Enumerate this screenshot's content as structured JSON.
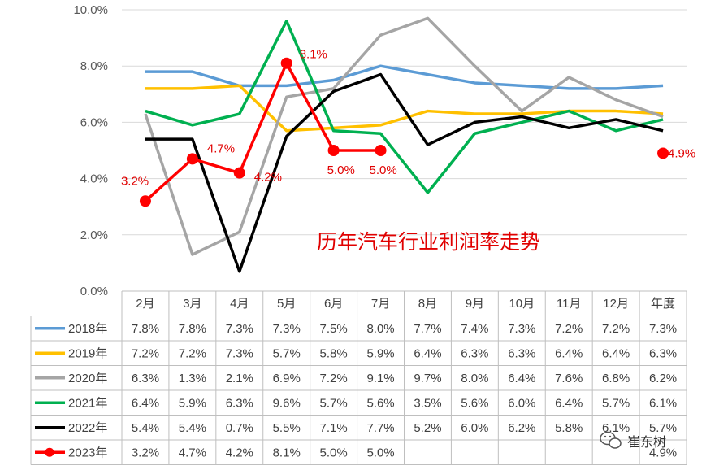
{
  "chart_data": {
    "type": "line",
    "title": "历年汽车行业利润率走势",
    "categories": [
      "2月",
      "3月",
      "4月",
      "5月",
      "6月",
      "7月",
      "8月",
      "9月",
      "10月",
      "11月",
      "12月",
      "年度"
    ],
    "y_ticks": [
      "0.0%",
      "2.0%",
      "4.0%",
      "6.0%",
      "8.0%",
      "10.0%"
    ],
    "ylim": [
      0,
      10
    ],
    "grid": true,
    "legend": "data-table",
    "series": [
      {
        "name": "2018年",
        "color": "#5b9bd5",
        "values": [
          7.8,
          7.8,
          7.3,
          7.3,
          7.5,
          8.0,
          7.7,
          7.4,
          7.3,
          7.2,
          7.2,
          7.3
        ],
        "labels": [
          "7.8%",
          "7.8%",
          "7.3%",
          "7.3%",
          "7.5%",
          "8.0%",
          "7.7%",
          "7.4%",
          "7.3%",
          "7.2%",
          "7.2%",
          "7.3%"
        ]
      },
      {
        "name": "2019年",
        "color": "#ffc000",
        "values": [
          7.2,
          7.2,
          7.3,
          5.7,
          5.8,
          5.9,
          6.4,
          6.3,
          6.3,
          6.4,
          6.4,
          6.3
        ],
        "labels": [
          "7.2%",
          "7.2%",
          "7.3%",
          "5.7%",
          "5.8%",
          "5.9%",
          "6.4%",
          "6.3%",
          "6.3%",
          "6.4%",
          "6.4%",
          "6.3%"
        ]
      },
      {
        "name": "2020年",
        "color": "#a5a5a5",
        "values": [
          6.3,
          1.3,
          2.1,
          6.9,
          7.2,
          9.1,
          9.7,
          8.0,
          6.4,
          7.6,
          6.8,
          6.2
        ],
        "labels": [
          "6.3%",
          "1.3%",
          "2.1%",
          "6.9%",
          "7.2%",
          "9.1%",
          "9.7%",
          "8.0%",
          "6.4%",
          "7.6%",
          "6.8%",
          "6.2%"
        ]
      },
      {
        "name": "2021年",
        "color": "#00b050",
        "values": [
          6.4,
          5.9,
          6.3,
          9.6,
          5.7,
          5.6,
          3.5,
          5.6,
          6.0,
          6.4,
          5.7,
          6.1
        ],
        "labels": [
          "6.4%",
          "5.9%",
          "6.3%",
          "9.6%",
          "5.7%",
          "5.6%",
          "3.5%",
          "5.6%",
          "6.0%",
          "6.4%",
          "5.7%",
          "6.1%"
        ]
      },
      {
        "name": "2022年",
        "color": "#000000",
        "values": [
          5.4,
          5.4,
          0.7,
          5.5,
          7.1,
          7.7,
          5.2,
          6.0,
          6.2,
          5.8,
          6.1,
          5.7
        ],
        "labels": [
          "5.4%",
          "5.4%",
          "0.7%",
          "5.5%",
          "7.1%",
          "7.7%",
          "5.2%",
          "6.0%",
          "6.2%",
          "5.8%",
          "6.1%",
          "5.7%"
        ]
      },
      {
        "name": "2023年",
        "color": "#ff0000",
        "values": [
          3.2,
          4.7,
          4.2,
          8.1,
          5.0,
          5.0,
          null,
          null,
          null,
          null,
          null,
          4.9
        ],
        "labels": [
          "3.2%",
          "4.7%",
          "4.2%",
          "8.1%",
          "5.0%",
          "5.0%",
          "",
          "",
          "",
          "",
          "",
          "4.9%"
        ]
      }
    ]
  },
  "watermark": {
    "text": "崔东树",
    "icon": "wechat-icon"
  }
}
